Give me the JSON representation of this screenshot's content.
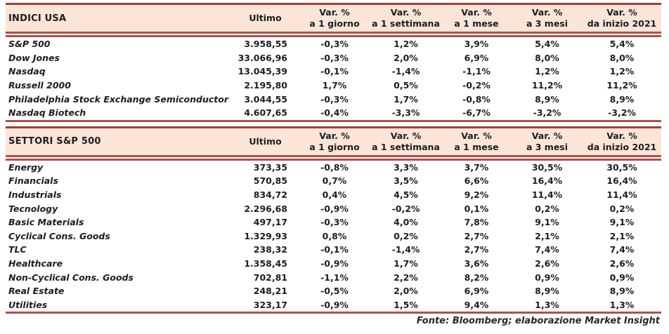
{
  "palette": {
    "line_red": "#b0504a",
    "line_red_dark": "#9c3f36",
    "header_bg": "#fbe5d6",
    "text_ink": "#1c1c26"
  },
  "columns": {
    "ultimo": "Ultimo",
    "var_cols": [
      {
        "key": "1-giorno",
        "line1": "Var. %",
        "line2": "a 1 giorno"
      },
      {
        "key": "1-settimana",
        "line1": "Var. %",
        "line2": "a 1 settimana"
      },
      {
        "key": "1-mese",
        "line1": "Var. %",
        "line2": "a 1 mese"
      },
      {
        "key": "3-mesi",
        "line1": "Var. %",
        "line2": "a 3 mesi"
      },
      {
        "key": "inizio-2021",
        "line1": "Var. %",
        "line2": "da inizio 2021"
      }
    ]
  },
  "tables": [
    {
      "title": "INDICI USA",
      "rows": [
        {
          "name": "S&P 500",
          "ultimo": "3.958,55",
          "vars": [
            "-0,3%",
            "1,2%",
            "3,9%",
            "5,4%",
            "5,4%"
          ]
        },
        {
          "name": "Dow Jones",
          "ultimo": "33.066,96",
          "vars": [
            "-0,3%",
            "2,0%",
            "6,9%",
            "8,0%",
            "8,0%"
          ]
        },
        {
          "name": "Nasdaq",
          "ultimo": "13.045,39",
          "vars": [
            "-0,1%",
            "-1,4%",
            "-1,1%",
            "1,2%",
            "1,2%"
          ]
        },
        {
          "name": "Russell 2000",
          "ultimo": "2.195,80",
          "vars": [
            "1,7%",
            "0,5%",
            "-0,2%",
            "11,2%",
            "11,2%"
          ]
        },
        {
          "name": "Philadelphia Stock Exchange Semiconductor",
          "ultimo": "3.044,55",
          "vars": [
            "-0,3%",
            "1,7%",
            "-0,8%",
            "8,9%",
            "8,9%"
          ]
        },
        {
          "name": "Nasdaq Biotech",
          "ultimo": "4.607,65",
          "vars": [
            "-0,4%",
            "-3,3%",
            "-6,7%",
            "-3,2%",
            "-3,2%"
          ]
        }
      ]
    },
    {
      "title": "SETTORI S&P 500",
      "rows": [
        {
          "name": "Energy",
          "ultimo": "373,35",
          "vars": [
            "-0,8%",
            "3,3%",
            "3,7%",
            "30,5%",
            "30,5%"
          ]
        },
        {
          "name": "Financials",
          "ultimo": "570,85",
          "vars": [
            "0,7%",
            "3,5%",
            "6,6%",
            "16,4%",
            "16,4%"
          ]
        },
        {
          "name": "Industrials",
          "ultimo": "834,72",
          "vars": [
            "0,4%",
            "4,5%",
            "9,2%",
            "11,4%",
            "11,4%"
          ]
        },
        {
          "name": "Tecnology",
          "ultimo": "2.296,68",
          "vars": [
            "-0,9%",
            "-0,2%",
            "0,1%",
            "0,2%",
            "0,2%"
          ]
        },
        {
          "name": "Basic Materials",
          "ultimo": "497,17",
          "vars": [
            "-0,3%",
            "4,0%",
            "7,8%",
            "9,1%",
            "9,1%"
          ]
        },
        {
          "name": "Cyclical Cons. Goods",
          "ultimo": "1.329,93",
          "vars": [
            "0,8%",
            "0,2%",
            "2,7%",
            "2,1%",
            "2,1%"
          ]
        },
        {
          "name": "TLC",
          "ultimo": "238,32",
          "vars": [
            "-0,1%",
            "-1,4%",
            "2,7%",
            "7,4%",
            "7,4%"
          ]
        },
        {
          "name": "Healthcare",
          "ultimo": "1.358,45",
          "vars": [
            "-0,9%",
            "1,7%",
            "3,6%",
            "2,6%",
            "2,6%"
          ]
        },
        {
          "name": "Non-Cyclical Cons. Goods",
          "ultimo": "702,81",
          "vars": [
            "-1,1%",
            "2,2%",
            "8,2%",
            "0,9%",
            "0,9%"
          ]
        },
        {
          "name": "Real Estate",
          "ultimo": "248,21",
          "vars": [
            "-0,5%",
            "2,0%",
            "6,9%",
            "8,9%",
            "8,9%"
          ]
        },
        {
          "name": "Utilities",
          "ultimo": "323,17",
          "vars": [
            "-0,9%",
            "1,5%",
            "9,4%",
            "1,3%",
            "1,3%"
          ]
        }
      ]
    }
  ],
  "footer": {
    "source": "Fonte: Bloomberg; elaborazione Market Insight"
  }
}
